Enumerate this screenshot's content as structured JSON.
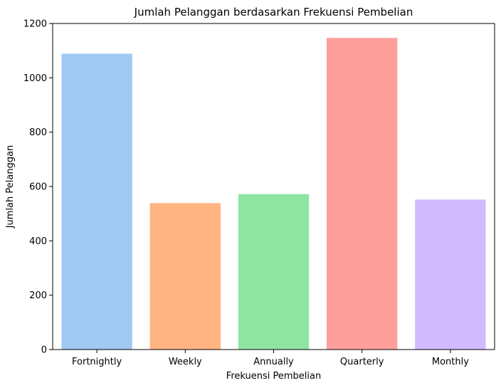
{
  "chart_data": {
    "type": "bar",
    "title": "Jumlah Pelanggan berdasarkan Frekuensi Pembelian",
    "xlabel": "Frekuensi Pembelian",
    "ylabel": "Jumlah Pelanggan",
    "categories": [
      "Fortnightly",
      "Weekly",
      "Annually",
      "Quarterly",
      "Monthly"
    ],
    "values": [
      1089,
      539,
      572,
      1147,
      552
    ],
    "colors": [
      "#a1c9f4",
      "#ffb482",
      "#8de5a1",
      "#ff9f9b",
      "#d0bbff"
    ],
    "ylim": [
      0,
      1200
    ],
    "yticks": [
      0,
      200,
      400,
      600,
      800,
      1000,
      1200
    ],
    "ytick_labels": [
      "0",
      "200",
      "400",
      "600",
      "800",
      "1000",
      "1200"
    ],
    "grid": false,
    "legend": false
  }
}
